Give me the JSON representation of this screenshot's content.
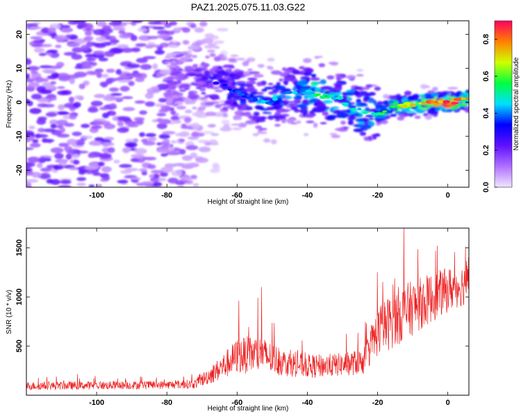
{
  "title": "PAZ1.2025.075.11.03.G22",
  "chart_data": [
    {
      "type": "heatmap",
      "xlabel": "Height of straight line (km)",
      "ylabel": "Frequency (Hz)",
      "xlim": [
        -120,
        6
      ],
      "ylim": [
        -25,
        24
      ],
      "x_ticks": [
        -100,
        -80,
        -60,
        -40,
        -20,
        0
      ],
      "y_ticks": [
        -20,
        -10,
        0,
        10,
        20
      ],
      "colorbar": {
        "label": "Normalized spectral amplitude",
        "range": [
          0,
          0.9
        ],
        "ticks": [
          0.0,
          0.2,
          0.4,
          0.6,
          0.8
        ],
        "colormap": [
          "#f0e6ff",
          "#b070ff",
          "#6010ff",
          "#0000ff",
          "#00e0ff",
          "#00ff40",
          "#d0ff00",
          "#ff8000",
          "#ff0060"
        ]
      },
      "ridge": [
        {
          "x": -120,
          "f": 8.0,
          "a": 0.12
        },
        {
          "x": -100,
          "f": 7.0,
          "a": 0.15
        },
        {
          "x": -80,
          "f": 6.0,
          "a": 0.2
        },
        {
          "x": -72,
          "f": 7.0,
          "a": 0.25
        },
        {
          "x": -64,
          "f": 5.0,
          "a": 0.35
        },
        {
          "x": -56,
          "f": 1.0,
          "a": 0.4
        },
        {
          "x": -50,
          "f": 0.0,
          "a": 0.45
        },
        {
          "x": -44,
          "f": 3.5,
          "a": 0.45
        },
        {
          "x": -38,
          "f": 2.5,
          "a": 0.55
        },
        {
          "x": -30,
          "f": 0.5,
          "a": 0.5
        },
        {
          "x": -24,
          "f": -3.0,
          "a": 0.5
        },
        {
          "x": -20,
          "f": -3.5,
          "a": 0.55
        },
        {
          "x": -15,
          "f": -1.0,
          "a": 0.65
        },
        {
          "x": -8,
          "f": -0.5,
          "a": 0.75
        },
        {
          "x": -4,
          "f": 0.0,
          "a": 0.85
        },
        {
          "x": 1,
          "f": 0.0,
          "a": 0.9
        },
        {
          "x": 6,
          "f": 1.0,
          "a": 0.8
        }
      ]
    },
    {
      "type": "line",
      "xlabel": "Height of straight line (km)",
      "ylabel": "SNR (10 * v/v)",
      "xlim": [
        -120,
        6
      ],
      "ylim": [
        0,
        1700
      ],
      "x_ticks": [
        -100,
        -80,
        -60,
        -40,
        -20,
        0
      ],
      "y_ticks": [
        500,
        1000,
        1500
      ],
      "color": "#ee2020",
      "envelope": [
        {
          "x": -120,
          "base": 90,
          "spread": 70
        },
        {
          "x": -80,
          "base": 100,
          "spread": 70
        },
        {
          "x": -72,
          "base": 110,
          "spread": 80
        },
        {
          "x": -66,
          "base": 230,
          "spread": 180
        },
        {
          "x": -60,
          "base": 380,
          "spread": 300
        },
        {
          "x": -54,
          "base": 400,
          "spread": 330
        },
        {
          "x": -46,
          "base": 310,
          "spread": 220
        },
        {
          "x": -38,
          "base": 280,
          "spread": 200
        },
        {
          "x": -30,
          "base": 300,
          "spread": 200
        },
        {
          "x": -24,
          "base": 330,
          "spread": 220
        },
        {
          "x": -20,
          "base": 620,
          "spread": 420
        },
        {
          "x": -14,
          "base": 780,
          "spread": 500
        },
        {
          "x": -8,
          "base": 900,
          "spread": 450
        },
        {
          "x": 0,
          "base": 1050,
          "spread": 380
        },
        {
          "x": 6,
          "base": 1120,
          "spread": 350
        }
      ],
      "peaks": [
        {
          "x": -59.5,
          "y": 960
        },
        {
          "x": -53,
          "y": 1100
        },
        {
          "x": -12.5,
          "y": 1700
        },
        {
          "x": -3,
          "y": 1520
        },
        {
          "x": 5,
          "y": 1510
        }
      ]
    }
  ]
}
